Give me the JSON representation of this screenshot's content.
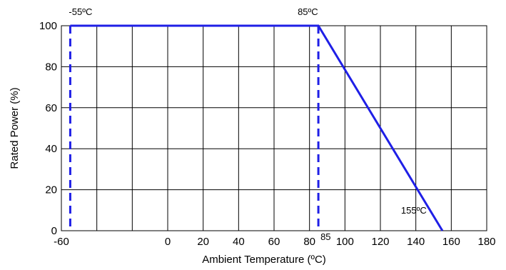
{
  "chart_data": {
    "type": "line",
    "title": "",
    "xlabel": "Ambient Temperature (ºC)",
    "ylabel": "Rated Power (%)",
    "xlim": [
      -60,
      180
    ],
    "ylim": [
      0,
      100
    ],
    "x_ticks": [
      {
        "value": -60,
        "label": "-60"
      },
      {
        "value": 0,
        "label": "0"
      },
      {
        "value": 20,
        "label": "20"
      },
      {
        "value": 40,
        "label": "40"
      },
      {
        "value": 60,
        "label": "60"
      },
      {
        "value": 80,
        "label": "80"
      },
      {
        "value": 100,
        "label": "100"
      },
      {
        "value": 120,
        "label": "120"
      },
      {
        "value": 140,
        "label": "140"
      },
      {
        "value": 160,
        "label": "160"
      },
      {
        "value": 180,
        "label": "180"
      }
    ],
    "x_grid": [
      -60,
      -40,
      -20,
      0,
      20,
      40,
      60,
      80,
      100,
      120,
      140,
      160,
      180
    ],
    "y_ticks": [
      0,
      20,
      40,
      60,
      80,
      100
    ],
    "grid": true,
    "series": [
      {
        "color": "#1f1fe6",
        "points": [
          {
            "x": -55,
            "y": 100
          },
          {
            "x": 85,
            "y": 100
          },
          {
            "x": 155,
            "y": 0
          }
        ]
      }
    ],
    "reference_lines": [
      {
        "x": -55,
        "color": "#1f1fe6",
        "style": "dashed"
      },
      {
        "x": 85,
        "color": "#1f1fe6",
        "style": "dashed"
      }
    ],
    "annotations": [
      {
        "text": "-55ºC",
        "x": -55,
        "y": 100
      },
      {
        "text": "85ºC",
        "x": 85,
        "y": 100
      },
      {
        "text": "85",
        "x": 85,
        "y": 0
      },
      {
        "text": "155ºC",
        "x": 155,
        "y": 0
      }
    ]
  }
}
